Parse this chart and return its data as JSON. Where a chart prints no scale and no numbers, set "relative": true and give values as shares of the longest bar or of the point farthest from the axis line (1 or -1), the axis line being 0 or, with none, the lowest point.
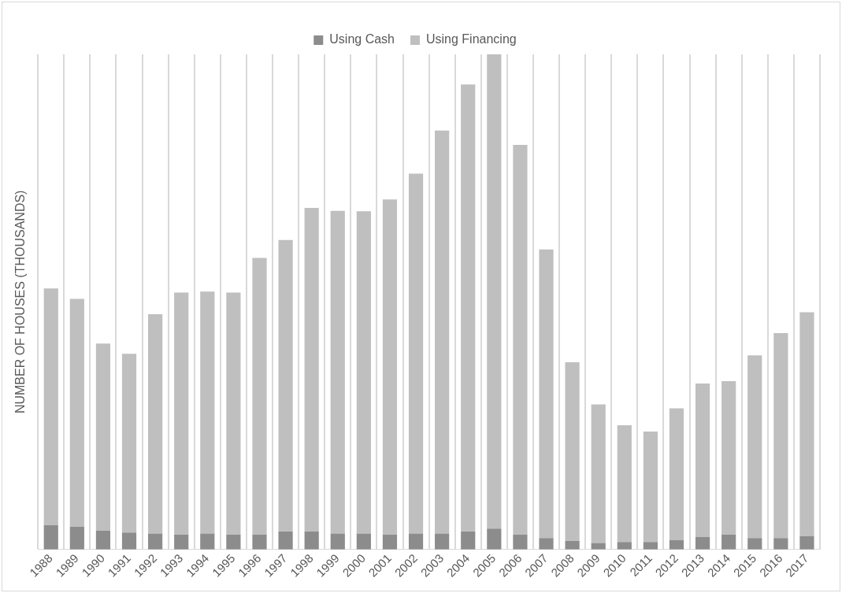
{
  "chart_data": {
    "type": "bar",
    "stacked": true,
    "relative": true,
    "ylabel": "NUMBER OF HOUSES (THOUSANDS)",
    "legend": "top",
    "grid": "x",
    "categories": [
      "1988",
      "1989",
      "1990",
      "1991",
      "1992",
      "1993",
      "1994",
      "1995",
      "1996",
      "1997",
      "1998",
      "1999",
      "2000",
      "2001",
      "2002",
      "2003",
      "2004",
      "2005",
      "2006",
      "2007",
      "2008",
      "2009",
      "2010",
      "2011",
      "2012",
      "2013",
      "2014",
      "2015",
      "2016",
      "2017"
    ],
    "series": [
      {
        "name": "Using Cash",
        "color": "#8c8c8c",
        "values": [
          0.049,
          0.046,
          0.038,
          0.034,
          0.032,
          0.03,
          0.032,
          0.03,
          0.03,
          0.036,
          0.036,
          0.032,
          0.032,
          0.03,
          0.032,
          0.032,
          0.036,
          0.042,
          0.03,
          0.023,
          0.017,
          0.013,
          0.015,
          0.015,
          0.019,
          0.025,
          0.03,
          0.023,
          0.023,
          0.027
        ]
      },
      {
        "name": "Using Financing",
        "color": "#bfbfbf",
        "values": [
          0.478,
          0.46,
          0.378,
          0.361,
          0.443,
          0.489,
          0.489,
          0.489,
          0.559,
          0.589,
          0.654,
          0.652,
          0.651,
          0.677,
          0.727,
          0.814,
          0.903,
          0.958,
          0.787,
          0.583,
          0.361,
          0.28,
          0.236,
          0.223,
          0.266,
          0.31,
          0.31,
          0.369,
          0.414,
          0.452
        ]
      }
    ]
  }
}
